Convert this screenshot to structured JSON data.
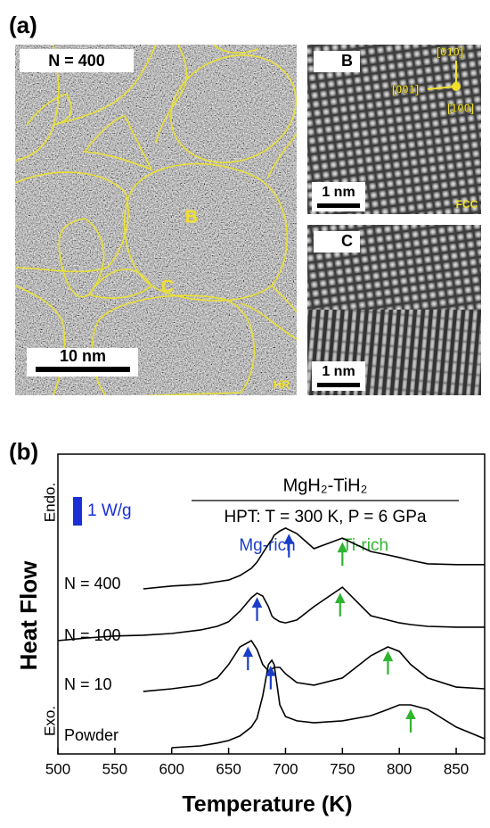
{
  "panel_a": {
    "label": "(a)",
    "main": {
      "count_label": "N = 400",
      "grain_b": "B",
      "grain_c": "C",
      "scale_bar": "10 nm",
      "mode": "HR"
    },
    "inset_b": {
      "label": "B",
      "direction_1": "[010]",
      "direction_2": "[001]",
      "direction_3": "[100]",
      "scale_bar": "1 nm",
      "structure": "FCC"
    },
    "inset_c": {
      "label": "C",
      "scale_bar": "1 nm"
    }
  },
  "chart_data": {
    "type": "line",
    "panel_label": "(b)",
    "title": "MgH₂-TiH₂",
    "subtitle": "HPT: T = 300 K, P = 6 GPa",
    "xlabel": "Temperature (K)",
    "ylabel": "Heat Flow",
    "endo_label": "Endo.",
    "exo_label": "Exo.",
    "scale_bar": {
      "label": "1 W/g",
      "value": 1,
      "color": "#1a2fd6"
    },
    "peak_labels": [
      {
        "text": "Mg-rich",
        "color": "#1a3fc8"
      },
      {
        "text": "Ti-rich",
        "color": "#2fb52f"
      }
    ],
    "xlim": [
      500,
      875
    ],
    "ylim": [
      0,
      10.5
    ],
    "xticks": [
      500,
      550,
      600,
      650,
      700,
      750,
      800,
      850
    ],
    "x": [
      500,
      525,
      550,
      575,
      600,
      625,
      640,
      650,
      660,
      670,
      675,
      680,
      685,
      688,
      690,
      695,
      700,
      710,
      725,
      750,
      775,
      790,
      800,
      810,
      825,
      850,
      875
    ],
    "series": [
      {
        "name": "N = 400",
        "color": "#000000",
        "values": [
          null,
          null,
          null,
          5.78,
          5.88,
          5.94,
          6.03,
          6.09,
          6.25,
          6.5,
          6.72,
          7.03,
          7.34,
          7.5,
          7.66,
          7.81,
          7.91,
          7.72,
          7.19,
          7.56,
          7.09,
          6.97,
          6.88,
          6.78,
          6.66,
          6.63,
          6.63
        ],
        "arrows": [
          {
            "x": 703,
            "color": "#1a3fc8"
          },
          {
            "x": 750,
            "color": "#2fb52f"
          }
        ]
      },
      {
        "name": "N = 100",
        "color": "#000000",
        "values": [
          3.97,
          4.06,
          4.13,
          4.16,
          4.22,
          4.34,
          4.47,
          4.63,
          5.0,
          5.47,
          5.63,
          5.53,
          5.16,
          4.84,
          4.75,
          4.63,
          4.59,
          4.69,
          5.16,
          5.84,
          4.84,
          4.69,
          4.59,
          4.53,
          4.47,
          4.44,
          4.44
        ],
        "arrows": [
          {
            "x": 675,
            "color": "#1a3fc8"
          },
          {
            "x": 748,
            "color": "#2fb52f"
          }
        ]
      },
      {
        "name": "N = 10",
        "color": "#000000",
        "values": [
          null,
          null,
          null,
          2.19,
          2.28,
          2.41,
          2.66,
          3.13,
          3.75,
          3.97,
          3.66,
          3.13,
          2.91,
          2.97,
          3.03,
          3.03,
          2.81,
          2.5,
          2.41,
          2.66,
          3.44,
          3.75,
          3.59,
          3.13,
          2.66,
          2.34,
          2.28
        ],
        "arrows": [
          {
            "x": 667,
            "color": "#1a3fc8"
          },
          {
            "x": 790,
            "color": "#2fb52f"
          }
        ]
      },
      {
        "name": "Powder",
        "color": "#000000",
        "values": [
          null,
          null,
          null,
          null,
          0.22,
          0.28,
          0.38,
          0.47,
          0.63,
          0.94,
          1.25,
          2.03,
          3.13,
          3.28,
          3.13,
          1.72,
          1.31,
          1.16,
          1.09,
          1.16,
          1.34,
          1.56,
          1.72,
          1.72,
          1.56,
          0.94,
          0.53
        ],
        "arrows": [
          {
            "x": 687,
            "color": "#1a3fc8"
          },
          {
            "x": 810,
            "color": "#2fb52f"
          }
        ]
      }
    ]
  }
}
